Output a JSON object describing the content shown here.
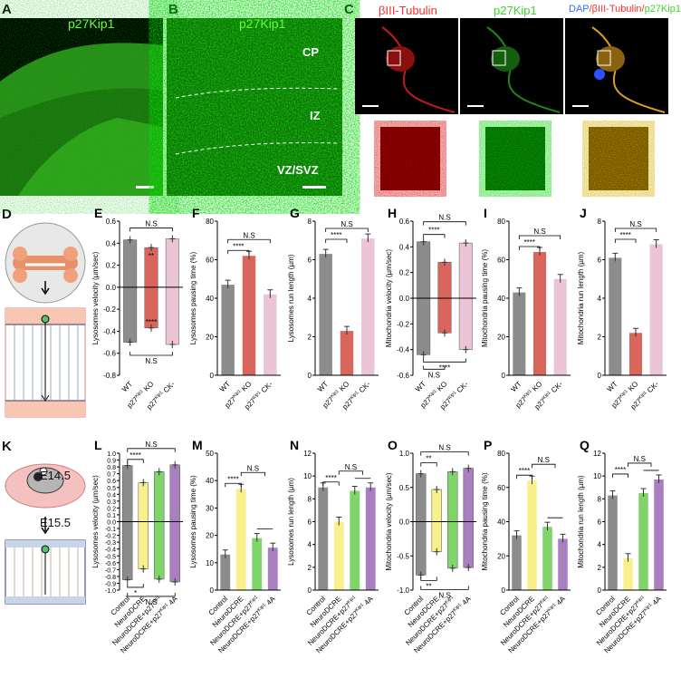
{
  "panel_letters": {
    "A": "A",
    "B": "B",
    "C": "C",
    "D": "D",
    "E": "E",
    "F": "F",
    "G": "G",
    "H": "H",
    "I": "I",
    "J": "J",
    "K": "K",
    "L": "L",
    "M": "M",
    "N": "N",
    "O": "O",
    "P": "P",
    "Q": "Q"
  },
  "micrographs": {
    "A_title": "p27Kip1",
    "B_title": "p27Kip1",
    "B_zones": {
      "cp": "CP",
      "iz": "IZ",
      "vz": "VZ/SVZ"
    },
    "C_title_red": "βIII-Tubulin",
    "C_title_green": "p27Kip1",
    "C_title_merge_a": "DAP",
    "C_title_merge_b": "/βIII-Tubulin/",
    "C_title_merge_c": "p27Kip1"
  },
  "schematic_K": {
    "e1": "E14.5",
    "e2": "E15.5"
  },
  "chart_data": [
    {
      "panel": "E",
      "type": "bar",
      "ylabel": "Lysosomes velocity (µm/sec)",
      "ylim": [
        -0.8,
        0.6
      ],
      "yticks": [
        "-0.8",
        "-0.6",
        "-0.4",
        "-0.2",
        "0.0",
        "0.2",
        "0.4",
        "0.6"
      ],
      "categories": [
        "WT",
        "p27Kip1 KO",
        "p27Kip1 CK-"
      ],
      "colors": [
        "#8c8c8c",
        "#d9665c",
        "#ebc4d6"
      ],
      "pos": [
        0.43,
        0.36,
        0.44
      ],
      "neg": [
        -0.5,
        -0.37,
        -0.52
      ],
      "sig_top": [
        "N.S"
      ],
      "sig_inner": [
        "**",
        "****"
      ],
      "sig_bottom": [
        "N.S"
      ]
    },
    {
      "panel": "F",
      "type": "bar",
      "ylabel": "Lysosomes pausing time (%)",
      "ylim": [
        0,
        80
      ],
      "yticks": [
        "0",
        "20",
        "40",
        "60",
        "80"
      ],
      "categories": [
        "WT",
        "p27Kip1 KO",
        "p27Kip1 CK-"
      ],
      "colors": [
        "#8c8c8c",
        "#d9665c",
        "#ebc4d6"
      ],
      "values": [
        47,
        62,
        42
      ],
      "sig": [
        "N.S",
        "****"
      ]
    },
    {
      "panel": "G",
      "type": "bar",
      "ylabel": "Lysosomes run length (µm)",
      "ylim": [
        0,
        8
      ],
      "yticks": [
        "0",
        "2",
        "4",
        "6",
        "8"
      ],
      "categories": [
        "WT",
        "p27Kip1 KO",
        "p27Kip1 CK-"
      ],
      "colors": [
        "#8c8c8c",
        "#d9665c",
        "#ebc4d6"
      ],
      "values": [
        6.3,
        2.3,
        7.1
      ],
      "sig": [
        "N.S",
        "****"
      ]
    },
    {
      "panel": "H",
      "type": "bar",
      "ylabel": "Mitochondria velocity (µm/sec)",
      "ylim": [
        -0.6,
        0.6
      ],
      "yticks": [
        "-0.6",
        "-0.4",
        "-0.2",
        "0.0",
        "0.2",
        "0.4",
        "0.6"
      ],
      "categories": [
        "WT",
        "p27Kip1 KO",
        "p27Kip1 CK-"
      ],
      "colors": [
        "#8c8c8c",
        "#d9665c",
        "#ebc4d6"
      ],
      "pos": [
        0.44,
        0.28,
        0.43
      ],
      "neg": [
        -0.44,
        -0.27,
        -0.4
      ],
      "sig_top": [
        "N.S",
        "****"
      ],
      "sig_bottom": [
        "****",
        "N.S"
      ]
    },
    {
      "panel": "I",
      "type": "bar",
      "ylabel": "Mitochondria pausing time (%)",
      "ylim": [
        0,
        80
      ],
      "yticks": [
        "0",
        "20",
        "40",
        "60",
        "80"
      ],
      "categories": [
        "WT",
        "p27Kip1 KO",
        "p27Kip1 CK-"
      ],
      "colors": [
        "#8c8c8c",
        "#d9665c",
        "#ebc4d6"
      ],
      "values": [
        43,
        64,
        50
      ],
      "sig": [
        "N.S",
        "****"
      ]
    },
    {
      "panel": "J",
      "type": "bar",
      "ylabel": "Mitochondria run length (µm)",
      "ylim": [
        0,
        8
      ],
      "yticks": [
        "0",
        "2",
        "4",
        "6",
        "8"
      ],
      "categories": [
        "WT",
        "p27Kip1 KO",
        "p27Kip1 CK-"
      ],
      "colors": [
        "#8c8c8c",
        "#d9665c",
        "#ebc4d6"
      ],
      "values": [
        6.1,
        2.2,
        6.8
      ],
      "sig": [
        "N.S",
        "****"
      ]
    },
    {
      "panel": "L",
      "type": "bar",
      "ylabel": "Lysosomes velocity (µm/sec)",
      "ylim": [
        -1.0,
        1.0
      ],
      "yticks": [
        "-1.0",
        "-0.9",
        "-0.8",
        "-0.7",
        "-0.6",
        "-0.5",
        "-0.4",
        "-0.3",
        "-0.2",
        "-0.1",
        "0.0",
        "0.1",
        "0.2",
        "0.3",
        "0.4",
        "0.5",
        "0.6",
        "0.7",
        "0.8",
        "0.9",
        "1.0"
      ],
      "categories": [
        "Control",
        "NeuroDCRE",
        "NeuroDCRE+p27Kip1",
        "NeuroDCRE+p27Kip1 4A"
      ],
      "colors": [
        "#8c8c8c",
        "#f7f08c",
        "#7fd46a",
        "#a97fbf"
      ],
      "pos": [
        0.82,
        0.57,
        0.73,
        0.83
      ],
      "neg": [
        -0.85,
        -0.69,
        -0.84,
        -0.88
      ],
      "sig_top": [
        "****",
        "N.S"
      ],
      "sig_bottom": [
        "*",
        "N.S"
      ]
    },
    {
      "panel": "M",
      "type": "bar",
      "ylabel": "Lysosomes pausing time (%)",
      "ylim": [
        0,
        50
      ],
      "yticks": [
        "0",
        "10",
        "20",
        "30",
        "40",
        "50"
      ],
      "categories": [
        "Control",
        "NeuroDCRE",
        "NeuroDCRE+p27Kip1",
        "NeuroDCRE+p27Kip1 4A"
      ],
      "colors": [
        "#8c8c8c",
        "#f7f08c",
        "#7fd46a",
        "#a97fbf"
      ],
      "values": [
        13,
        37,
        19,
        15.5
      ],
      "sig": [
        "****",
        "N.S"
      ]
    },
    {
      "panel": "N",
      "type": "bar",
      "ylabel": "Lysosomes run length (µm)",
      "ylim": [
        0,
        12
      ],
      "yticks": [
        "0",
        "2",
        "4",
        "6",
        "8",
        "10",
        "12"
      ],
      "categories": [
        "Control",
        "NeuroDCRE",
        "NeuroDCRE+p27Kip1",
        "NeuroDCRE+p27Kip1 4A"
      ],
      "colors": [
        "#8c8c8c",
        "#f7f08c",
        "#7fd46a",
        "#a97fbf"
      ],
      "values": [
        9,
        6,
        8.7,
        9
      ],
      "sig": [
        "****",
        "N.S"
      ]
    },
    {
      "panel": "O",
      "type": "bar",
      "ylabel": "Mitochondria velocity (µm/sec)",
      "ylim": [
        -1.0,
        1.0
      ],
      "yticks": [
        "-1.0",
        "-0.5",
        "0.0",
        "0.5",
        "1.0"
      ],
      "categories": [
        "Control",
        "NeuroDCRE",
        "NeuroDCRE+p27Kip1",
        "NeuroDCRE+p27Kip1 4A"
      ],
      "colors": [
        "#8c8c8c",
        "#f7f08c",
        "#7fd46a",
        "#a97fbf"
      ],
      "pos": [
        0.7,
        0.47,
        0.73,
        0.78
      ],
      "neg": [
        -0.78,
        -0.44,
        -0.68,
        -0.67
      ],
      "sig_top": [
        "**",
        "N.S"
      ],
      "sig_bottom": [
        "**",
        "N.S"
      ]
    },
    {
      "panel": "P",
      "type": "bar",
      "ylabel": "Mitochondria pausing time (%)",
      "ylim": [
        0,
        80
      ],
      "yticks": [
        "0",
        "20",
        "40",
        "60",
        "80"
      ],
      "categories": [
        "Control",
        "NeuroDCRE",
        "NeuroDCRE+p27Kip1",
        "NeuroDCRE+p27Kip1 4A"
      ],
      "colors": [
        "#8c8c8c",
        "#f7f08c",
        "#7fd46a",
        "#a97fbf"
      ],
      "values": [
        32,
        64,
        37,
        30
      ],
      "sig": [
        "****",
        "N.S"
      ]
    },
    {
      "panel": "Q",
      "type": "bar",
      "ylabel": "Mitochondria run length (µm)",
      "ylim": [
        0,
        12
      ],
      "yticks": [
        "0",
        "2",
        "4",
        "6",
        "8",
        "10",
        "12"
      ],
      "categories": [
        "Control",
        "NeuroDCRE",
        "NeuroDCRE+p27Kip1",
        "NeuroDCRE+p27Kip1 4A"
      ],
      "colors": [
        "#8c8c8c",
        "#f7f08c",
        "#7fd46a",
        "#a97fbf"
      ],
      "values": [
        8.3,
        2.8,
        8.5,
        9.7
      ],
      "sig": [
        "****",
        "N.S"
      ]
    }
  ]
}
